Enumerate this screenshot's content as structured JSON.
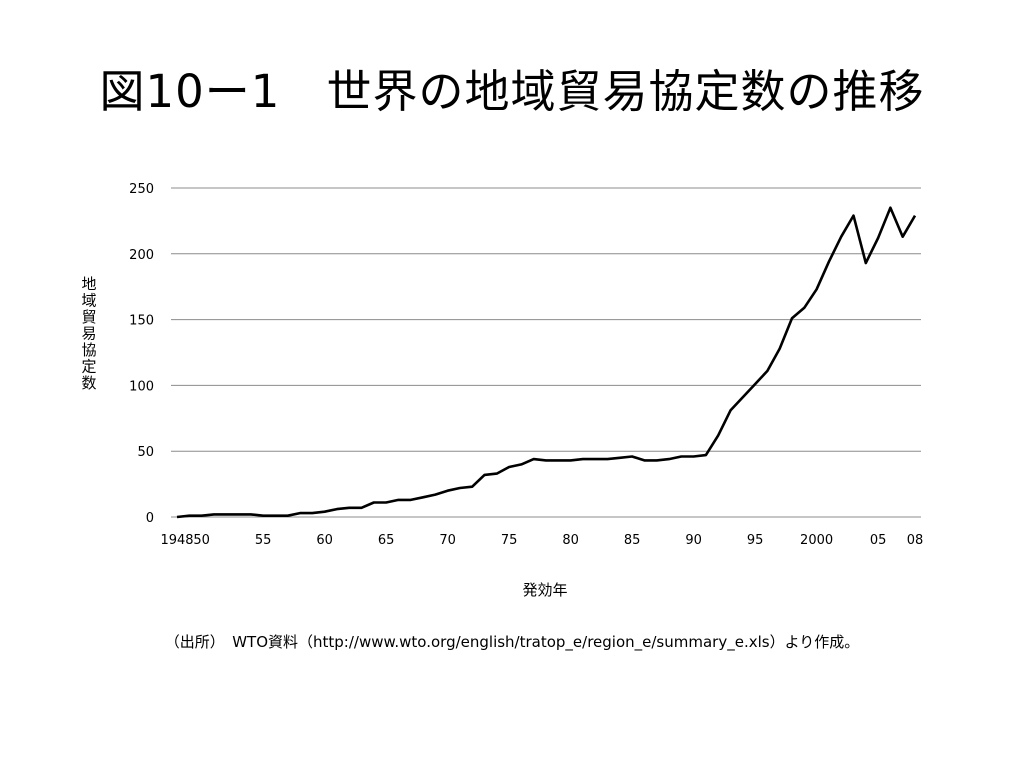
{
  "slide": {
    "title": "図10ー1　世界の地域貿易協定数の推移",
    "source": "（出所）　WTO資料（http://www.wto.org/english/tratop_e/region_e/summary_e.xls）より作成。"
  },
  "colors": {
    "line": "#000000",
    "grid": "#8c8c8c"
  },
  "chart_data": {
    "type": "line",
    "title": "",
    "xlabel": "発効年",
    "ylabel": "地域貿易協定数",
    "ylim": [
      0,
      250
    ],
    "yticks": [
      0,
      50,
      100,
      150,
      200,
      250
    ],
    "grid": true,
    "legend": "none",
    "xtick_labels": [
      {
        "x": 1948,
        "label": "1948"
      },
      {
        "x": 1950,
        "label": "50"
      },
      {
        "x": 1955,
        "label": "55"
      },
      {
        "x": 1960,
        "label": "60"
      },
      {
        "x": 1965,
        "label": "65"
      },
      {
        "x": 1970,
        "label": "70"
      },
      {
        "x": 1975,
        "label": "75"
      },
      {
        "x": 1980,
        "label": "80"
      },
      {
        "x": 1985,
        "label": "85"
      },
      {
        "x": 1990,
        "label": "90"
      },
      {
        "x": 1995,
        "label": "95"
      },
      {
        "x": 2000,
        "label": "2000"
      },
      {
        "x": 2005,
        "label": "05"
      },
      {
        "x": 2008,
        "label": "08"
      }
    ],
    "x": [
      1948,
      1949,
      1950,
      1951,
      1952,
      1953,
      1954,
      1955,
      1956,
      1957,
      1958,
      1959,
      1960,
      1961,
      1962,
      1963,
      1964,
      1965,
      1966,
      1967,
      1968,
      1969,
      1970,
      1971,
      1972,
      1973,
      1974,
      1975,
      1976,
      1977,
      1978,
      1979,
      1980,
      1981,
      1982,
      1983,
      1984,
      1985,
      1986,
      1987,
      1988,
      1989,
      1990,
      1991,
      1992,
      1993,
      1994,
      1995,
      1996,
      1997,
      1998,
      1999,
      2000,
      2001,
      2002,
      2003,
      2004,
      2005,
      2006,
      2007,
      2008
    ],
    "series": [
      {
        "values": [
          0,
          1,
          1,
          2,
          2,
          2,
          2,
          1,
          1,
          1,
          3,
          3,
          4,
          6,
          7,
          7,
          11,
          11,
          13,
          13,
          15,
          17,
          20,
          22,
          23,
          32,
          33,
          38,
          40,
          44,
          43,
          43,
          43,
          44,
          44,
          44,
          45,
          46,
          43,
          43,
          44,
          46,
          46,
          47,
          62,
          81,
          91,
          101,
          111,
          128,
          151,
          159,
          173,
          194,
          213,
          229,
          193,
          212,
          235,
          213,
          229
        ]
      }
    ]
  }
}
